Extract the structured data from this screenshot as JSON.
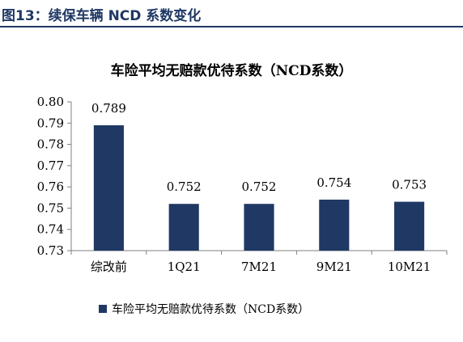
{
  "figure": {
    "label": "图13：续保车辆 NCD 系数变化"
  },
  "colors": {
    "header": "#1f3864",
    "bar": "#1f3864",
    "axis": "#808080",
    "text": "#000000"
  },
  "chart_data": {
    "type": "bar",
    "title": "车险平均无赔款优待系数（NCD系数）",
    "xlabel": "",
    "ylabel": "",
    "categories": [
      "综改前",
      "1Q21",
      "7M21",
      "9M21",
      "10M21"
    ],
    "series": [
      {
        "name": "车险平均无赔款优待系数（NCD系数）",
        "values": [
          0.789,
          0.752,
          0.752,
          0.754,
          0.753
        ],
        "data_labels": [
          "0.789",
          "0.752",
          "0.752",
          "0.754",
          "0.753"
        ]
      }
    ],
    "ylim": [
      0.73,
      0.8
    ],
    "yticks": [
      "0.73",
      "0.74",
      "0.75",
      "0.76",
      "0.77",
      "0.78",
      "0.79",
      "0.80"
    ],
    "grid": false,
    "legend": "bottom"
  }
}
